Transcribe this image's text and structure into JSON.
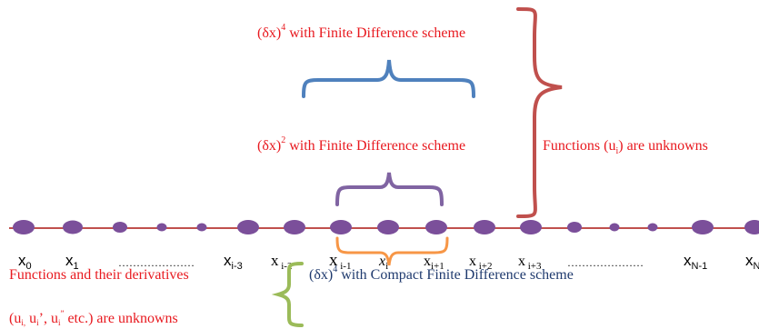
{
  "labels": {
    "top_scheme_a": "(δx)",
    "top_scheme_exp": "4",
    "top_scheme_b": " with Finite Difference scheme",
    "mid_scheme_a": "(δx)",
    "mid_scheme_exp": "2",
    "mid_scheme_b": " with Finite Difference scheme",
    "functions_unknown_a": "Functions (u",
    "functions_unknown_sub": "i",
    "functions_unknown_b": ") are unknowns",
    "compact_scheme_a": "(δx)",
    "compact_scheme_exp": "4",
    "compact_scheme_b": " with Compact Finite Difference scheme",
    "derivs_line1": "Functions and their derivatives",
    "derivs_line2_a": "(u",
    "derivs_line2_s1": "i,",
    "derivs_line2_b": " u",
    "derivs_line2_s2": "i",
    "derivs_line2_c": "’, u",
    "derivs_line2_s3": "i",
    "derivs_line2_sup": "”",
    "derivs_line2_d": " etc.)  are unknowns"
  },
  "grid_labels": [
    {
      "base": "x",
      "sub": "0"
    },
    {
      "base": "x",
      "sub": "1"
    },
    {
      "base": "…………………",
      "sub": ""
    },
    {
      "base": "x",
      "sub": "i-3"
    },
    {
      "base": "x",
      "sub": " i-2"
    },
    {
      "base": "x",
      "sub": " i-1"
    },
    {
      "base": "x",
      "sub": "i"
    },
    {
      "base": "x",
      "sub": "i+1"
    },
    {
      "base": "x",
      "sub": " i+2"
    },
    {
      "base": "x",
      "sub": " i+3"
    },
    {
      "base": "…………………",
      "sub": ""
    },
    {
      "base": "x",
      "sub": "N-1"
    },
    {
      "base": "x",
      "sub": "N"
    }
  ],
  "colors": {
    "line": "#c0504d",
    "node": "#7b4f9a",
    "bracket_red": "#c0504d",
    "bracket_blue": "#4f81bd",
    "bracket_purple": "#8064a2",
    "bracket_orange": "#f79646",
    "bracket_green": "#9bbb59",
    "text_red": "#e8191f",
    "text_navy": "#1f3a6e"
  }
}
